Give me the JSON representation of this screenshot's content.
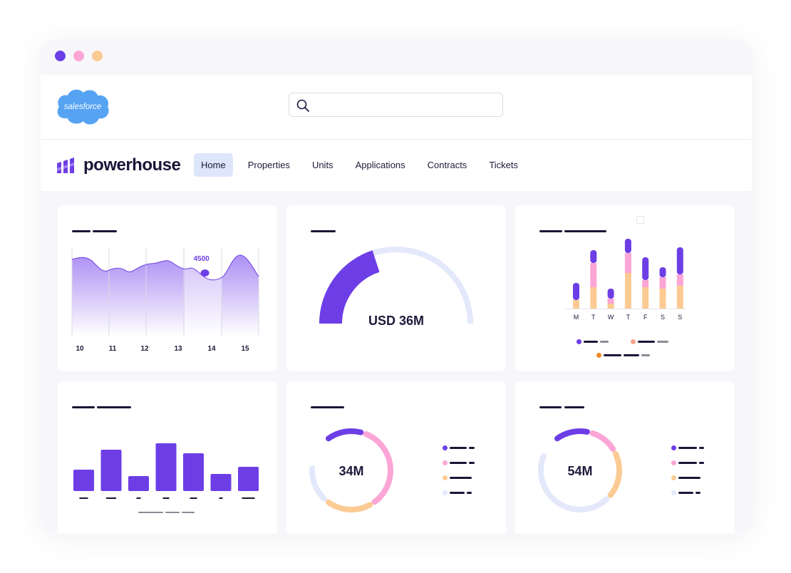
{
  "window": {
    "controls": [
      "close",
      "minimize",
      "maximize"
    ],
    "colors": {
      "close": "#6d3ee6",
      "minimize": "#fca5d6",
      "maximize": "#fbcb93"
    }
  },
  "header": {
    "logo_text": "salesforce",
    "search": {
      "placeholder": "",
      "value": "",
      "icon": "search-icon"
    }
  },
  "brand": {
    "name": "powerhouse",
    "logo_icon": "powerhouse-logo-icon"
  },
  "nav": {
    "items": [
      {
        "label": "Home",
        "active": true
      },
      {
        "label": "Properties",
        "active": false
      },
      {
        "label": "Units",
        "active": false
      },
      {
        "label": "Applications",
        "active": false
      },
      {
        "label": "Contracts",
        "active": false
      },
      {
        "label": "Tickets",
        "active": false
      }
    ]
  },
  "colors": {
    "accent": "#6d3ee6",
    "pink": "#fca5d6",
    "peach": "#fbcb93",
    "light": "#e3e8fb",
    "dark": "#1b1537"
  },
  "chart_data": [
    {
      "type": "area",
      "x": [
        10,
        11,
        12,
        13,
        14,
        15
      ],
      "highlight": {
        "x": 13.8,
        "label": "4500"
      }
    },
    {
      "type": "gauge",
      "label": "USD 36M",
      "fraction": 0.4
    },
    {
      "type": "bar",
      "stacked": true,
      "categories": [
        "M",
        "T",
        "W",
        "T",
        "F",
        "S",
        "S"
      ],
      "series": [
        {
          "color": "#fbcb93",
          "values": [
            12,
            30,
            7,
            50,
            30,
            28,
            32
          ]
        },
        {
          "color": "#fca5d6",
          "values": [
            0,
            34,
            7,
            28,
            10,
            16,
            16
          ]
        },
        {
          "color": "#6d3ee6",
          "values": [
            24,
            18,
            14,
            20,
            32,
            14,
            38
          ]
        }
      ]
    },
    {
      "type": "bar",
      "values": [
        30,
        58,
        21,
        67,
        53,
        24,
        34
      ]
    },
    {
      "type": "pie",
      "label": "34M",
      "slices": [
        {
          "color": "#6d3ee6",
          "value": 16
        },
        {
          "color": "#fca5d6",
          "value": 36
        },
        {
          "color": "#fbcb93",
          "value": 20
        },
        {
          "color": "#e3e8fb",
          "value": 16
        }
      ]
    },
    {
      "type": "pie",
      "label": "54M",
      "slices": [
        {
          "color": "#6d3ee6",
          "value": 15
        },
        {
          "color": "#fca5d6",
          "value": 13
        },
        {
          "color": "#fbcb93",
          "value": 20
        },
        {
          "color": "#e3e8fb",
          "value": 45
        }
      ]
    }
  ]
}
